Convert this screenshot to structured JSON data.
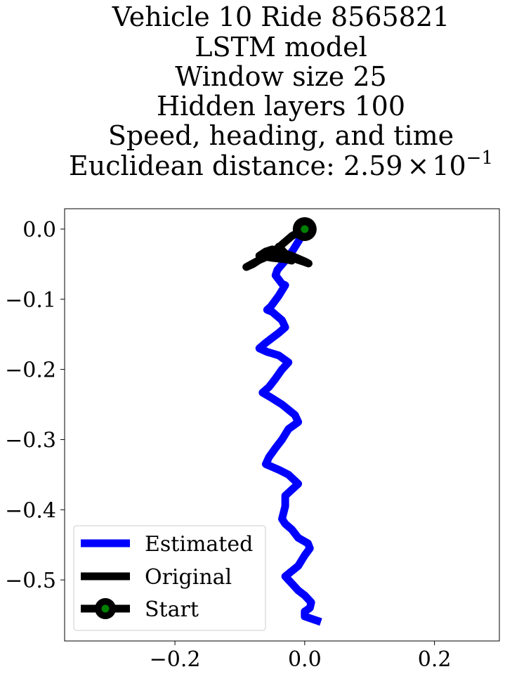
{
  "chart_data": {
    "type": "line",
    "title_lines": [
      "Vehicle 10 Ride 8565821",
      "LSTM model",
      "Window size 25",
      "Hidden layers 100",
      "Speed, heading, and time"
    ],
    "title_metric": {
      "prefix": "Euclidean distance: ",
      "mantissa": "2.59",
      "times": "×",
      "base": "10",
      "exponent": "−1"
    },
    "xlabel": "",
    "ylabel": "",
    "xlim": [
      -0.37,
      0.3
    ],
    "ylim": [
      -0.587,
      0.029
    ],
    "xticks": [
      -0.2,
      0.0,
      0.2
    ],
    "xtick_labels": [
      "−0.2",
      "0.0",
      "0.2"
    ],
    "yticks": [
      0.0,
      -0.1,
      -0.2,
      -0.3,
      -0.4,
      -0.5
    ],
    "ytick_labels": [
      "0.0",
      "−0.1",
      "−0.2",
      "−0.3",
      "−0.4",
      "−0.5"
    ],
    "grid": false,
    "legend_position": "lower-left",
    "series": [
      {
        "name": "Estimated",
        "color": "#0000ff",
        "x": [
          0.0,
          -0.008,
          -0.018,
          -0.03,
          -0.042,
          -0.045,
          -0.035,
          -0.03,
          -0.04,
          -0.052,
          -0.058,
          -0.05,
          -0.035,
          -0.03,
          -0.04,
          -0.05,
          -0.06,
          -0.07,
          -0.058,
          -0.04,
          -0.025,
          -0.035,
          -0.045,
          -0.055,
          -0.065,
          -0.052,
          -0.035,
          -0.015,
          -0.01,
          -0.025,
          -0.035,
          -0.045,
          -0.055,
          -0.06,
          -0.04,
          -0.025,
          -0.01,
          -0.03,
          -0.03,
          -0.035,
          -0.03,
          -0.02,
          -0.01,
          0.005,
          0.008,
          0.0,
          -0.01,
          -0.03,
          -0.02,
          -0.01,
          0.0,
          0.01,
          0.008,
          0.0,
          0.0,
          0.025
        ],
        "y": [
          0.0,
          -0.015,
          -0.03,
          -0.045,
          -0.058,
          -0.066,
          -0.078,
          -0.08,
          -0.095,
          -0.11,
          -0.115,
          -0.118,
          -0.13,
          -0.14,
          -0.148,
          -0.155,
          -0.162,
          -0.17,
          -0.175,
          -0.18,
          -0.19,
          -0.2,
          -0.213,
          -0.225,
          -0.233,
          -0.24,
          -0.25,
          -0.265,
          -0.275,
          -0.285,
          -0.3,
          -0.312,
          -0.325,
          -0.335,
          -0.343,
          -0.35,
          -0.363,
          -0.38,
          -0.395,
          -0.413,
          -0.42,
          -0.428,
          -0.44,
          -0.448,
          -0.455,
          -0.465,
          -0.48,
          -0.495,
          -0.505,
          -0.515,
          -0.522,
          -0.532,
          -0.54,
          -0.545,
          -0.552,
          -0.56
        ]
      },
      {
        "name": "Original",
        "color": "#000000",
        "x": [
          0.0,
          -0.02,
          -0.03,
          -0.04,
          -0.05,
          -0.06,
          -0.07,
          -0.08,
          -0.09,
          -0.08,
          -0.07,
          -0.06,
          -0.05,
          -0.04,
          -0.03,
          -0.02,
          -0.01,
          0.0,
          0.006,
          0.0,
          -0.01,
          -0.02,
          -0.03,
          -0.04,
          -0.05,
          -0.06,
          -0.07,
          -0.05,
          -0.03,
          -0.02,
          -0.04,
          -0.025,
          -0.035,
          -0.045
        ],
        "y": [
          0.0,
          -0.01,
          -0.018,
          -0.026,
          -0.033,
          -0.039,
          -0.044,
          -0.049,
          -0.054,
          -0.05,
          -0.044,
          -0.04,
          -0.036,
          -0.033,
          -0.035,
          -0.038,
          -0.042,
          -0.046,
          -0.049,
          -0.047,
          -0.044,
          -0.04,
          -0.035,
          -0.031,
          -0.029,
          -0.032,
          -0.038,
          -0.041,
          -0.043,
          -0.045,
          -0.025,
          -0.04,
          -0.03,
          -0.044
        ]
      }
    ],
    "start": {
      "name": "Start",
      "x": 0.0,
      "y": 0.0,
      "marker_color": "#008000",
      "ring_color": "#000000"
    },
    "legend": [
      "Estimated",
      "Original",
      "Start"
    ]
  }
}
